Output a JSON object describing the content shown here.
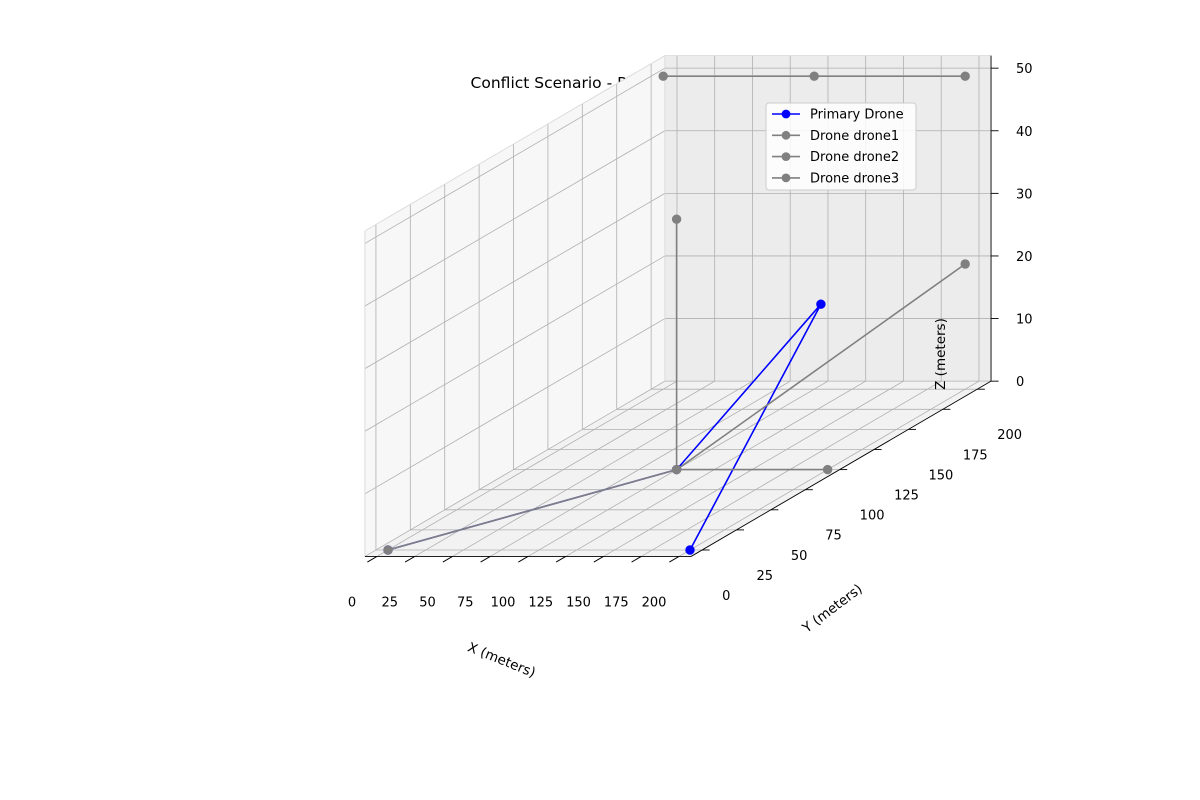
{
  "chart_data": {
    "type": "line3d",
    "title": "Conflict Scenario - Resolved Scenario",
    "xlabel": "X (meters)",
    "ylabel": "Y (meters)",
    "zlabel": "Z (meters)",
    "xlim": [
      -8,
      208
    ],
    "ylim": [
      -8,
      210
    ],
    "zlim": [
      0,
      52
    ],
    "xticks": [
      "0",
      "25",
      "50",
      "75",
      "100",
      "125",
      "150",
      "175",
      "200"
    ],
    "yticks": [
      "0",
      "25",
      "50",
      "75",
      "100",
      "125",
      "150",
      "175",
      "200"
    ],
    "zticks": [
      "0",
      "10",
      "20",
      "30",
      "40",
      "50"
    ],
    "grid": true,
    "legend": "top-right",
    "series": [
      {
        "name": "Primary Drone",
        "color": "#0000ff",
        "points": [
          [
            0,
            0,
            0
          ],
          [
            100,
            100,
            0
          ],
          [
            150,
            150,
            20
          ],
          [
            200,
            0,
            0
          ]
        ]
      },
      {
        "name": "Drone drone1",
        "color": "#808080",
        "points": [
          [
            0,
            200,
            50
          ],
          [
            100,
            200,
            50
          ],
          [
            200,
            200,
            50
          ]
        ]
      },
      {
        "name": "Drone drone2",
        "color": "#808080",
        "points": [
          [
            200,
            200,
            20
          ],
          [
            100,
            100,
            0
          ],
          [
            0,
            0,
            0
          ]
        ]
      },
      {
        "name": "Drone drone3",
        "color": "#808080",
        "points": [
          [
            100,
            100,
            40
          ],
          [
            100,
            100,
            0
          ],
          [
            200,
            100,
            0
          ]
        ]
      }
    ]
  }
}
